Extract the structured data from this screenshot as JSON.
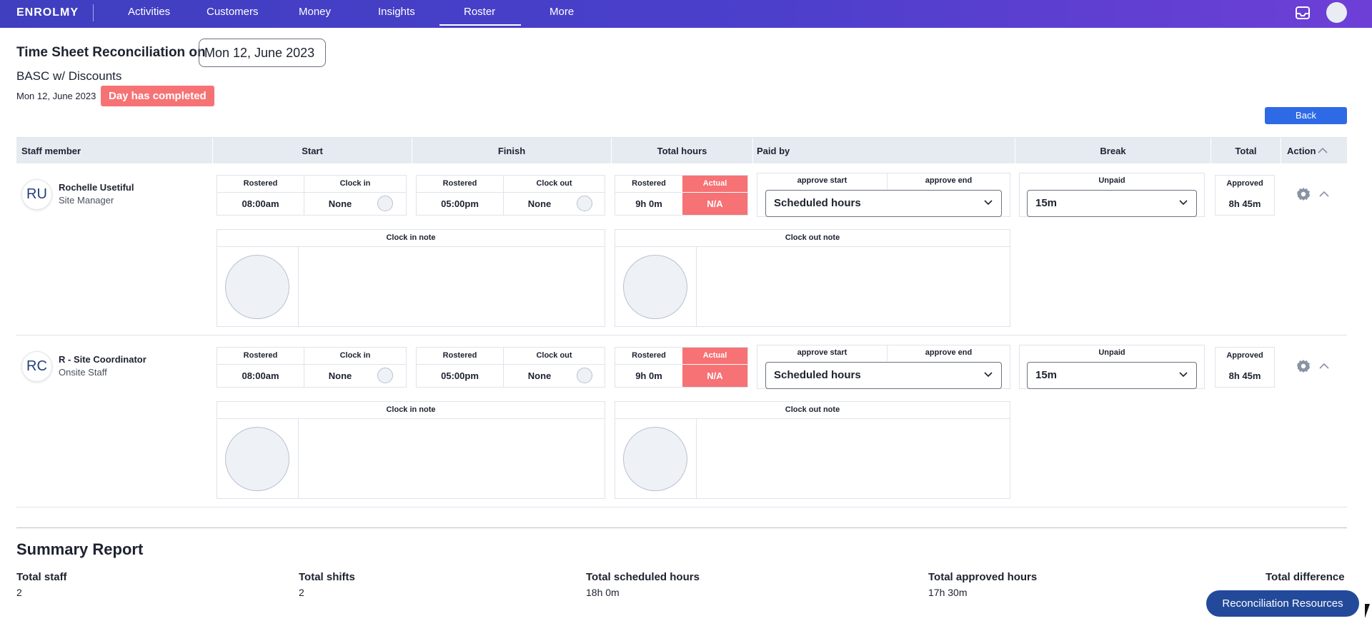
{
  "nav": {
    "logo": "ENROLMY",
    "items": [
      "Activities",
      "Customers",
      "Money",
      "Insights",
      "Roster",
      "More"
    ],
    "active": "Roster"
  },
  "header": {
    "title": "Time Sheet Reconciliation on",
    "date": "Mon 12, June 2023",
    "program": "BASC w/ Discounts",
    "sub_date": "Mon 12, June 2023",
    "status": "Day has completed",
    "back_label": "Back"
  },
  "table": {
    "columns": [
      "Staff member",
      "Start",
      "Finish",
      "Total hours",
      "Paid by",
      "Break",
      "Total",
      "Action"
    ],
    "labels": {
      "rostered": "Rostered",
      "clock_in": "Clock in",
      "clock_out": "Clock out",
      "actual": "Actual",
      "approve_start": "approve start",
      "approve_end": "approve end",
      "unpaid": "Unpaid",
      "approved": "Approved",
      "clock_in_note": "Clock in note",
      "clock_out_note": "Clock out note"
    },
    "rows": [
      {
        "initials": "RU",
        "name": "Rochelle Usetiful",
        "role": "Site Manager",
        "start_rostered": "08:00am",
        "clock_in": "None",
        "finish_rostered": "05:00pm",
        "clock_out": "None",
        "hours_rostered": "9h 0m",
        "hours_actual": "N/A",
        "paid_by": "Scheduled hours",
        "break_unpaid": "15m",
        "total_approved": "8h 45m"
      },
      {
        "initials": "RC",
        "name": "R - Site Coordinator",
        "role": "Onsite Staff",
        "start_rostered": "08:00am",
        "clock_in": "None",
        "finish_rostered": "05:00pm",
        "clock_out": "None",
        "hours_rostered": "9h 0m",
        "hours_actual": "N/A",
        "paid_by": "Scheduled hours",
        "break_unpaid": "15m",
        "total_approved": "8h 45m"
      }
    ]
  },
  "summary": {
    "title": "Summary Report",
    "items": [
      {
        "label": "Total staff",
        "value": "2"
      },
      {
        "label": "Total shifts",
        "value": "2"
      },
      {
        "label": "Total scheduled hours",
        "value": "18h 0m"
      },
      {
        "label": "Total approved hours",
        "value": "17h 30m"
      },
      {
        "label": "Total difference",
        "value": ""
      }
    ]
  },
  "resources_label": "Reconciliation Resources",
  "colors": {
    "nav_gradient_start": "#3f3fc0",
    "nav_gradient_end": "#6e3fd6",
    "alert": "#f67275",
    "primary": "#2e6ae6",
    "resources": "#234a9a"
  },
  "icons": [
    "inbox-icon",
    "gear-icon",
    "chevron-up-icon",
    "chevron-down-icon"
  ]
}
